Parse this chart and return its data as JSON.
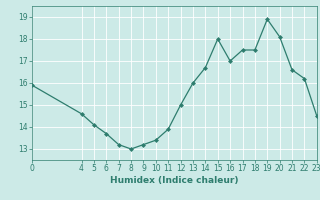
{
  "x": [
    0,
    4,
    5,
    6,
    7,
    8,
    9,
    10,
    11,
    12,
    13,
    14,
    15,
    16,
    17,
    18,
    19,
    20,
    21,
    22,
    23
  ],
  "y": [
    15.9,
    14.6,
    14.1,
    13.7,
    13.2,
    13.0,
    13.2,
    13.4,
    13.9,
    15.0,
    16.0,
    16.7,
    18.0,
    17.0,
    17.5,
    17.5,
    18.9,
    18.1,
    16.6,
    16.2,
    14.5
  ],
  "line_color": "#2e7d6e",
  "marker": "D",
  "marker_size": 2.0,
  "bg_color": "#cceae7",
  "grid_color": "#ffffff",
  "xlabel": "Humidex (Indice chaleur)",
  "xlim": [
    0,
    23
  ],
  "ylim": [
    12.5,
    19.5
  ],
  "yticks": [
    13,
    14,
    15,
    16,
    17,
    18,
    19
  ],
  "xticks": [
    0,
    4,
    5,
    6,
    7,
    8,
    9,
    10,
    11,
    12,
    13,
    14,
    15,
    16,
    17,
    18,
    19,
    20,
    21,
    22,
    23
  ],
  "tick_color": "#2e7d6e",
  "label_color": "#2e7d6e",
  "axis_fontsize": 6.5,
  "tick_fontsize": 5.5,
  "linewidth": 0.9
}
